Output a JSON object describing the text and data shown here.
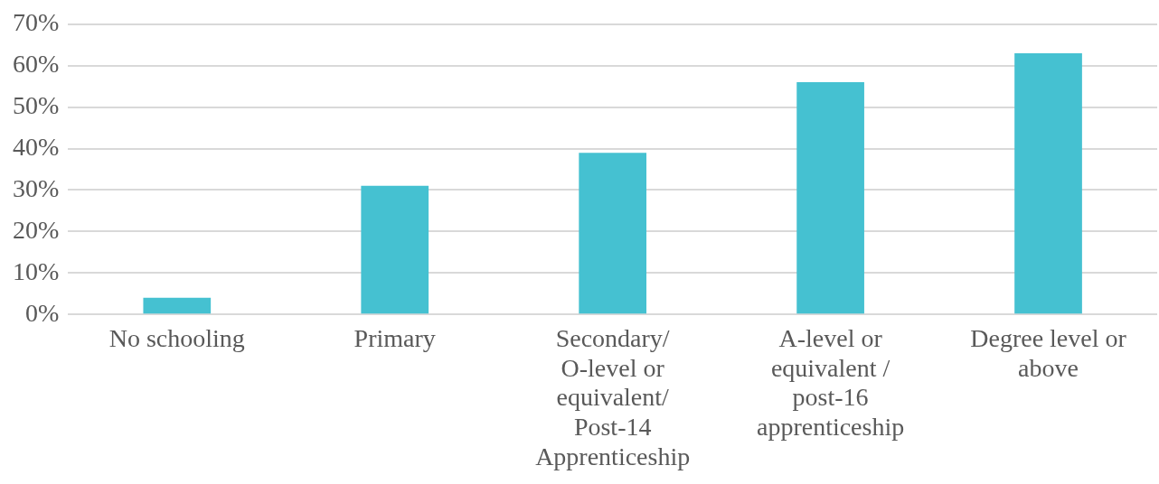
{
  "chart_data": {
    "type": "bar",
    "categories": [
      "No schooling",
      "Primary",
      "Secondary/ O-level or equivalent/ Post-14 Apprenticeship",
      "A-level or equivalent / post-16 apprenticeship",
      "Degree level or above"
    ],
    "values": [
      4,
      31,
      39,
      56,
      63
    ],
    "color": "#45c1d1",
    "ylim": [
      0,
      70
    ],
    "yticks": [
      {
        "value": 0,
        "label": "0%"
      },
      {
        "value": 10,
        "label": "10%"
      },
      {
        "value": 20,
        "label": "20%"
      },
      {
        "value": 30,
        "label": "30%"
      },
      {
        "value": 40,
        "label": "40%"
      },
      {
        "value": 50,
        "label": "50%"
      },
      {
        "value": 60,
        "label": "60%"
      },
      {
        "value": 70,
        "label": "70%"
      }
    ],
    "grid": "y",
    "legend": false
  }
}
